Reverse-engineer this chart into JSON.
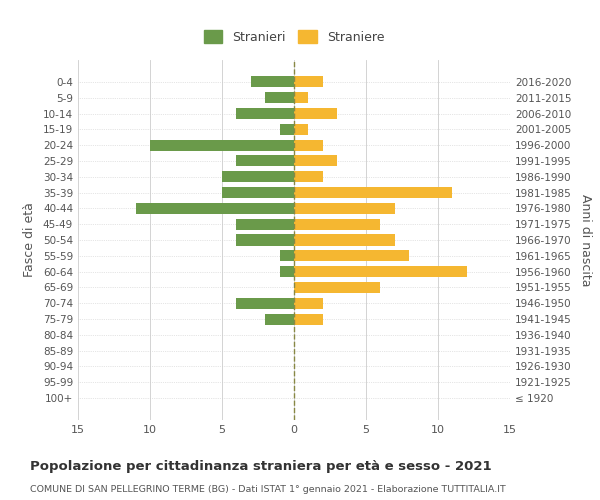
{
  "age_groups": [
    "100+",
    "95-99",
    "90-94",
    "85-89",
    "80-84",
    "75-79",
    "70-74",
    "65-69",
    "60-64",
    "55-59",
    "50-54",
    "45-49",
    "40-44",
    "35-39",
    "30-34",
    "25-29",
    "20-24",
    "15-19",
    "10-14",
    "5-9",
    "0-4"
  ],
  "birth_years": [
    "≤ 1920",
    "1921-1925",
    "1926-1930",
    "1931-1935",
    "1936-1940",
    "1941-1945",
    "1946-1950",
    "1951-1955",
    "1956-1960",
    "1961-1965",
    "1966-1970",
    "1971-1975",
    "1976-1980",
    "1981-1985",
    "1986-1990",
    "1991-1995",
    "1996-2000",
    "2001-2005",
    "2006-2010",
    "2011-2015",
    "2016-2020"
  ],
  "males": [
    0,
    0,
    0,
    0,
    0,
    2,
    4,
    0,
    1,
    1,
    4,
    4,
    11,
    5,
    5,
    4,
    10,
    1,
    4,
    2,
    3
  ],
  "females": [
    0,
    0,
    0,
    0,
    0,
    2,
    2,
    6,
    12,
    8,
    7,
    6,
    7,
    11,
    2,
    3,
    2,
    1,
    3,
    1,
    2
  ],
  "male_color": "#6a9a4a",
  "female_color": "#f5b731",
  "background_color": "#ffffff",
  "grid_color": "#cccccc",
  "dashed_line_color": "#888844",
  "title": "Popolazione per cittadinanza straniera per età e sesso - 2021",
  "subtitle": "COMUNE DI SAN PELLEGRINO TERME (BG) - Dati ISTAT 1° gennaio 2021 - Elaborazione TUTTITALIA.IT",
  "legend_stranieri": "Stranieri",
  "legend_straniere": "Straniere",
  "ylabel_left": "Fasce di età",
  "ylabel_right": "Anni di nascita",
  "xlim": 15,
  "bar_height": 0.7
}
